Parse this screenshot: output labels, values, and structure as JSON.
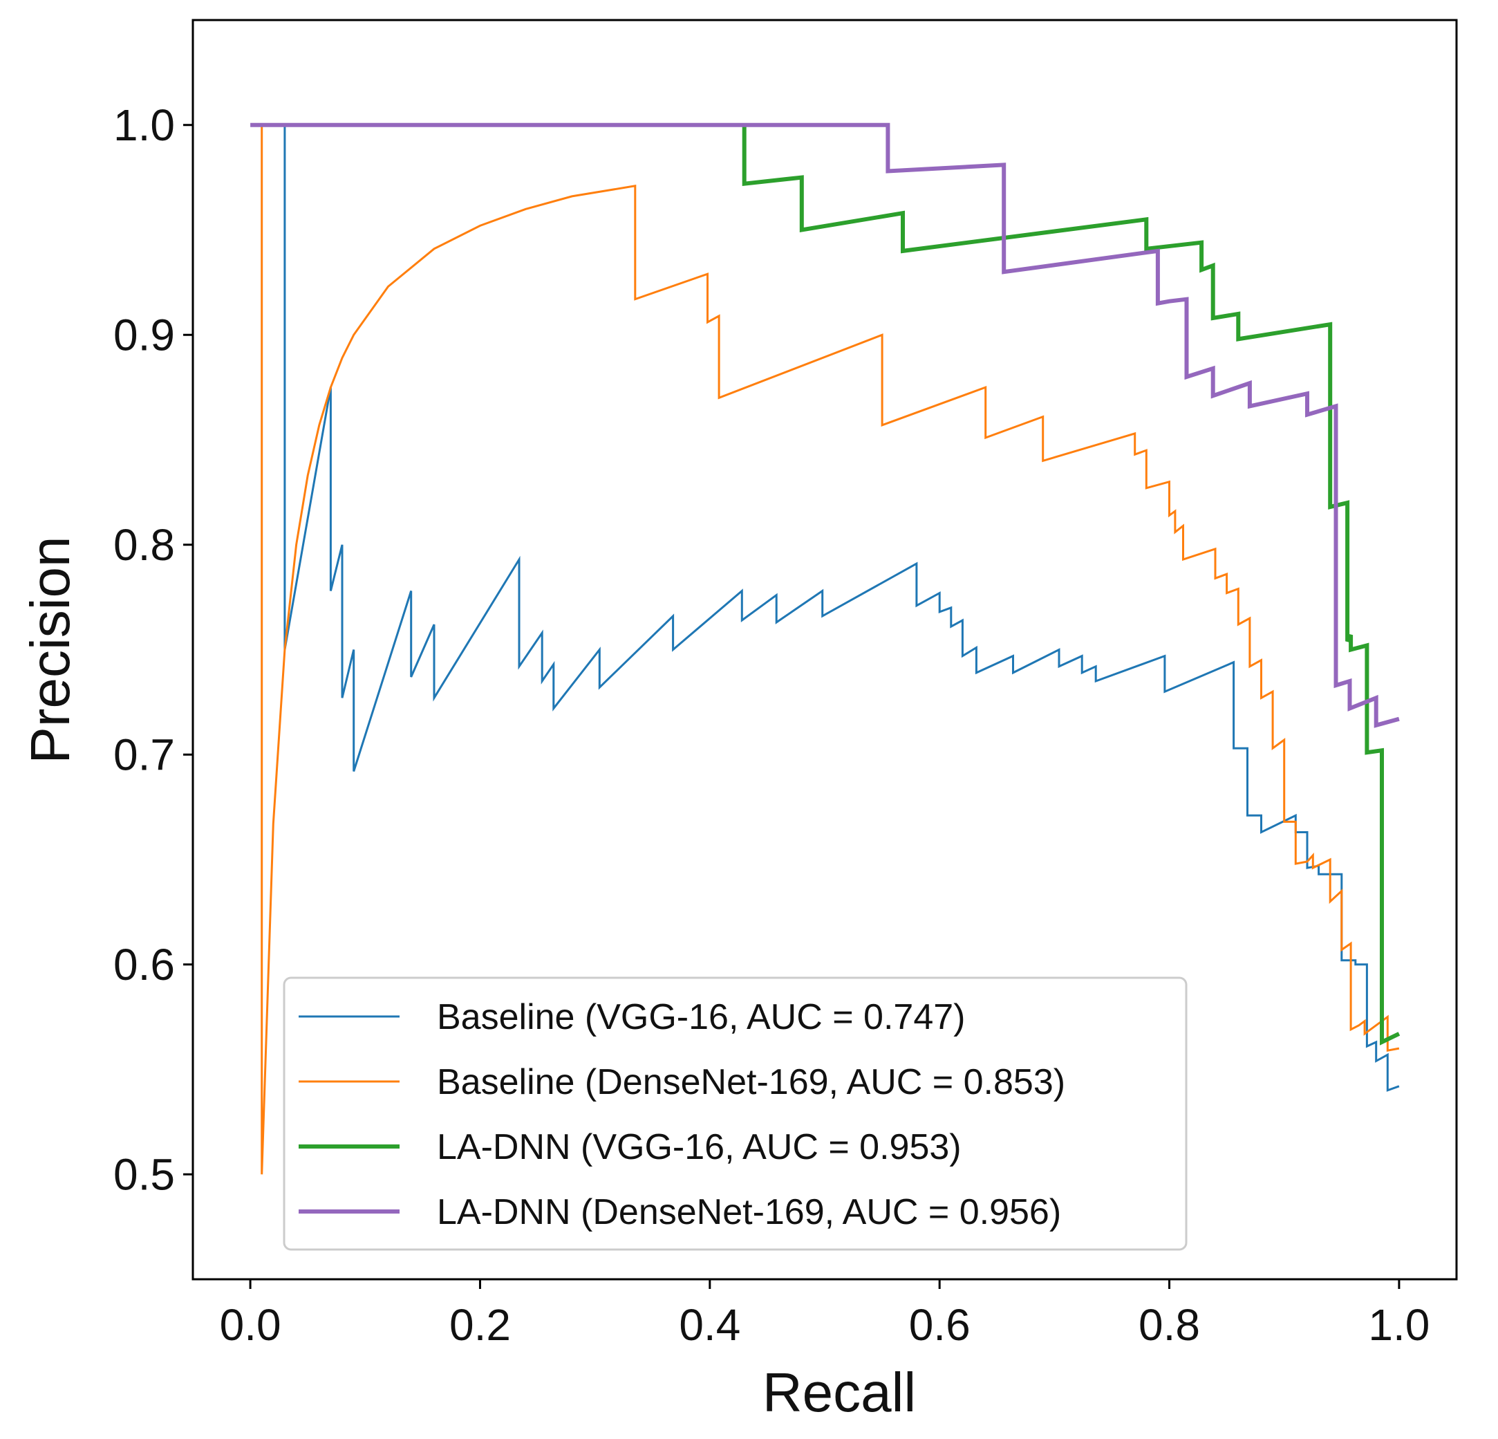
{
  "chart_data": {
    "type": "line",
    "title": "",
    "xlabel": "Recall",
    "ylabel": "Precision",
    "xlim": [
      -0.05,
      1.05
    ],
    "ylim": [
      0.45,
      1.05
    ],
    "xticks": [
      0.0,
      0.2,
      0.4,
      0.6,
      0.8,
      1.0
    ],
    "yticks": [
      0.5,
      0.6,
      0.7,
      0.8,
      0.9,
      1.0
    ],
    "xtick_labels": [
      "0.0",
      "0.2",
      "0.4",
      "0.6",
      "0.8",
      "1.0"
    ],
    "ytick_labels": [
      "0.5",
      "0.6",
      "0.7",
      "0.8",
      "0.9",
      "1.0"
    ],
    "grid": false,
    "legend_position": "lower-center",
    "series": [
      {
        "name": "Baseline (VGG-16, AUC = 0.747)",
        "color": "#1f77b4",
        "width": "thin",
        "points": [
          [
            0.03,
            1.0
          ],
          [
            0.03,
            0.75
          ],
          [
            0.07,
            0.875
          ],
          [
            0.07,
            0.778
          ],
          [
            0.08,
            0.8
          ],
          [
            0.08,
            0.727
          ],
          [
            0.09,
            0.75
          ],
          [
            0.09,
            0.692
          ],
          [
            0.14,
            0.778
          ],
          [
            0.14,
            0.737
          ],
          [
            0.16,
            0.762
          ],
          [
            0.16,
            0.727
          ],
          [
            0.234,
            0.793
          ],
          [
            0.234,
            0.742
          ],
          [
            0.254,
            0.758
          ],
          [
            0.254,
            0.735
          ],
          [
            0.264,
            0.743
          ],
          [
            0.264,
            0.722
          ],
          [
            0.304,
            0.75
          ],
          [
            0.304,
            0.732
          ],
          [
            0.368,
            0.766
          ],
          [
            0.368,
            0.75
          ],
          [
            0.428,
            0.778
          ],
          [
            0.428,
            0.764
          ],
          [
            0.458,
            0.776
          ],
          [
            0.458,
            0.763
          ],
          [
            0.498,
            0.778
          ],
          [
            0.498,
            0.766
          ],
          [
            0.58,
            0.791
          ],
          [
            0.58,
            0.771
          ],
          [
            0.6,
            0.777
          ],
          [
            0.6,
            0.768
          ],
          [
            0.61,
            0.77
          ],
          [
            0.61,
            0.761
          ],
          [
            0.62,
            0.764
          ],
          [
            0.62,
            0.747
          ],
          [
            0.632,
            0.751
          ],
          [
            0.632,
            0.739
          ],
          [
            0.664,
            0.747
          ],
          [
            0.664,
            0.739
          ],
          [
            0.704,
            0.75
          ],
          [
            0.704,
            0.742
          ],
          [
            0.724,
            0.747
          ],
          [
            0.724,
            0.739
          ],
          [
            0.736,
            0.742
          ],
          [
            0.736,
            0.735
          ],
          [
            0.796,
            0.747
          ],
          [
            0.796,
            0.73
          ],
          [
            0.856,
            0.744
          ],
          [
            0.856,
            0.703
          ],
          [
            0.868,
            0.703
          ],
          [
            0.868,
            0.671
          ],
          [
            0.88,
            0.671
          ],
          [
            0.88,
            0.663
          ],
          [
            0.91,
            0.671
          ],
          [
            0.91,
            0.663
          ],
          [
            0.92,
            0.663
          ],
          [
            0.92,
            0.646
          ],
          [
            0.93,
            0.647
          ],
          [
            0.93,
            0.643
          ],
          [
            0.95,
            0.643
          ],
          [
            0.95,
            0.602
          ],
          [
            0.962,
            0.602
          ],
          [
            0.962,
            0.6
          ],
          [
            0.972,
            0.6
          ],
          [
            0.972,
            0.561
          ],
          [
            0.98,
            0.563
          ],
          [
            0.98,
            0.554
          ],
          [
            0.99,
            0.557
          ],
          [
            0.99,
            0.54
          ],
          [
            1.0,
            0.542
          ]
        ]
      },
      {
        "name": "Baseline (DenseNet-169, AUC = 0.853)",
        "color": "#ff7f0e",
        "width": "thin",
        "points": [
          [
            0.01,
            1.0
          ],
          [
            0.01,
            0.5
          ],
          [
            0.02,
            0.667
          ],
          [
            0.03,
            0.75
          ],
          [
            0.04,
            0.8
          ],
          [
            0.05,
            0.833
          ],
          [
            0.06,
            0.857
          ],
          [
            0.07,
            0.875
          ],
          [
            0.08,
            0.889
          ],
          [
            0.09,
            0.9
          ],
          [
            0.12,
            0.923
          ],
          [
            0.16,
            0.941
          ],
          [
            0.2,
            0.952
          ],
          [
            0.24,
            0.96
          ],
          [
            0.28,
            0.966
          ],
          [
            0.335,
            0.971
          ],
          [
            0.335,
            0.917
          ],
          [
            0.398,
            0.929
          ],
          [
            0.398,
            0.906
          ],
          [
            0.408,
            0.909
          ],
          [
            0.408,
            0.87
          ],
          [
            0.55,
            0.9
          ],
          [
            0.55,
            0.857
          ],
          [
            0.64,
            0.875
          ],
          [
            0.64,
            0.851
          ],
          [
            0.69,
            0.861
          ],
          [
            0.69,
            0.84
          ],
          [
            0.77,
            0.853
          ],
          [
            0.77,
            0.843
          ],
          [
            0.78,
            0.845
          ],
          [
            0.78,
            0.827
          ],
          [
            0.8,
            0.83
          ],
          [
            0.8,
            0.814
          ],
          [
            0.805,
            0.816
          ],
          [
            0.805,
            0.806
          ],
          [
            0.812,
            0.809
          ],
          [
            0.812,
            0.793
          ],
          [
            0.84,
            0.798
          ],
          [
            0.84,
            0.784
          ],
          [
            0.85,
            0.786
          ],
          [
            0.85,
            0.777
          ],
          [
            0.86,
            0.779
          ],
          [
            0.86,
            0.762
          ],
          [
            0.87,
            0.765
          ],
          [
            0.87,
            0.742
          ],
          [
            0.88,
            0.745
          ],
          [
            0.88,
            0.727
          ],
          [
            0.89,
            0.73
          ],
          [
            0.89,
            0.703
          ],
          [
            0.9,
            0.707
          ],
          [
            0.9,
            0.668
          ],
          [
            0.91,
            0.668
          ],
          [
            0.91,
            0.648
          ],
          [
            0.92,
            0.649
          ],
          [
            0.925,
            0.652
          ],
          [
            0.925,
            0.646
          ],
          [
            0.94,
            0.65
          ],
          [
            0.94,
            0.63
          ],
          [
            0.95,
            0.635
          ],
          [
            0.95,
            0.607
          ],
          [
            0.958,
            0.61
          ],
          [
            0.958,
            0.569
          ],
          [
            0.965,
            0.571
          ],
          [
            0.97,
            0.573
          ],
          [
            0.97,
            0.567
          ],
          [
            0.99,
            0.575
          ],
          [
            0.99,
            0.559
          ],
          [
            1.0,
            0.56
          ]
        ]
      },
      {
        "name": "LA-DNN (VGG-16, AUC = 0.953)",
        "color": "#2ca02c",
        "width": "thick",
        "points": [
          [
            0.43,
            1.0
          ],
          [
            0.43,
            0.972
          ],
          [
            0.48,
            0.975
          ],
          [
            0.48,
            0.95
          ],
          [
            0.568,
            0.958
          ],
          [
            0.568,
            0.94
          ],
          [
            0.78,
            0.955
          ],
          [
            0.78,
            0.941
          ],
          [
            0.828,
            0.944
          ],
          [
            0.828,
            0.931
          ],
          [
            0.838,
            0.933
          ],
          [
            0.838,
            0.908
          ],
          [
            0.86,
            0.91
          ],
          [
            0.86,
            0.898
          ],
          [
            0.94,
            0.905
          ],
          [
            0.94,
            0.818
          ],
          [
            0.955,
            0.82
          ],
          [
            0.955,
            0.754
          ],
          [
            0.958,
            0.757
          ],
          [
            0.958,
            0.75
          ],
          [
            0.972,
            0.752
          ],
          [
            0.972,
            0.701
          ],
          [
            0.985,
            0.702
          ],
          [
            0.985,
            0.563
          ],
          [
            1.0,
            0.567
          ]
        ]
      },
      {
        "name": "LA-DNN (DenseNet-169, AUC = 0.956)",
        "color": "#9467bd",
        "width": "thick",
        "points": [
          [
            0.0,
            1.0
          ],
          [
            0.555,
            1.0
          ],
          [
            0.555,
            0.978
          ],
          [
            0.656,
            0.981
          ],
          [
            0.656,
            0.93
          ],
          [
            0.79,
            0.94
          ],
          [
            0.79,
            0.915
          ],
          [
            0.8,
            0.916
          ],
          [
            0.815,
            0.917
          ],
          [
            0.815,
            0.88
          ],
          [
            0.838,
            0.884
          ],
          [
            0.838,
            0.871
          ],
          [
            0.87,
            0.877
          ],
          [
            0.87,
            0.866
          ],
          [
            0.92,
            0.872
          ],
          [
            0.92,
            0.862
          ],
          [
            0.945,
            0.866
          ],
          [
            0.945,
            0.733
          ],
          [
            0.957,
            0.735
          ],
          [
            0.957,
            0.722
          ],
          [
            0.98,
            0.727
          ],
          [
            0.98,
            0.714
          ],
          [
            1.0,
            0.717
          ]
        ]
      }
    ]
  }
}
